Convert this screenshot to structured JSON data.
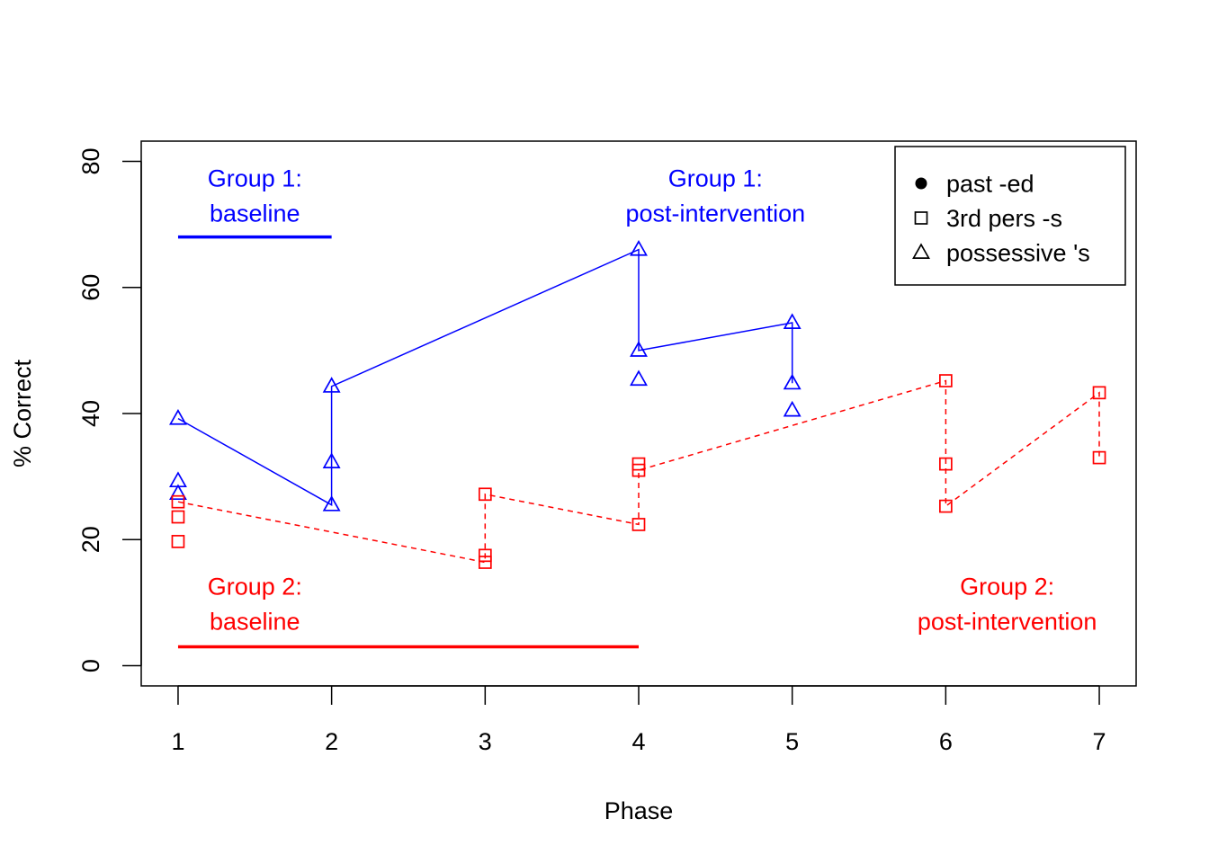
{
  "chart_data": {
    "type": "line",
    "xlabel": "Phase",
    "ylabel": "% Correct",
    "xlim": [
      0.76,
      7.24
    ],
    "ylim": [
      -3.2,
      83.2
    ],
    "x_ticks": [
      1,
      2,
      3,
      4,
      5,
      6,
      7
    ],
    "y_ticks": [
      0,
      20,
      40,
      60,
      80
    ],
    "grid": false,
    "legend": {
      "position": "top-right",
      "entries": [
        {
          "label": "past -ed",
          "symbol": "filled-circle"
        },
        {
          "label": "3rd pers -s",
          "symbol": "open-square"
        },
        {
          "label": "possessive 's",
          "symbol": "open-triangle"
        }
      ]
    },
    "series": [
      {
        "color": "#0000FF",
        "line_style": "solid",
        "marker": "open-triangle",
        "points": [
          {
            "x": 1,
            "y": 39.2
          },
          {
            "x": 1,
            "y": 29.3
          },
          {
            "x": 1,
            "y": 27.3
          },
          {
            "x": 2,
            "y": 44.3
          },
          {
            "x": 2,
            "y": 32.3
          },
          {
            "x": 2,
            "y": 25.5
          },
          {
            "x": 4,
            "y": 66.0
          },
          {
            "x": 4,
            "y": 50.0
          },
          {
            "x": 4,
            "y": 45.4
          },
          {
            "x": 5,
            "y": 54.4
          },
          {
            "x": 5,
            "y": 44.8
          },
          {
            "x": 5,
            "y": 40.5
          }
        ],
        "trend_line": [
          {
            "x": 1,
            "y": 39.2
          },
          {
            "x": 2,
            "y": 25.5
          },
          {
            "x": 2,
            "y": 44.3
          },
          {
            "x": 4,
            "y": 66.0
          },
          {
            "x": 4,
            "y": 50.0
          },
          {
            "x": 5,
            "y": 54.4
          },
          {
            "x": 5,
            "y": 44.8
          }
        ]
      },
      {
        "color": "#FF0000",
        "line_style": "dashed",
        "marker": "open-square",
        "points": [
          {
            "x": 1,
            "y": 26.0
          },
          {
            "x": 1,
            "y": 23.6
          },
          {
            "x": 1,
            "y": 19.7
          },
          {
            "x": 3,
            "y": 27.2
          },
          {
            "x": 3,
            "y": 17.5
          },
          {
            "x": 3,
            "y": 16.4
          },
          {
            "x": 4,
            "y": 32.0
          },
          {
            "x": 4,
            "y": 31.0
          },
          {
            "x": 4,
            "y": 22.4
          },
          {
            "x": 6,
            "y": 45.2
          },
          {
            "x": 6,
            "y": 32.0
          },
          {
            "x": 6,
            "y": 25.3
          },
          {
            "x": 7,
            "y": 43.3
          },
          {
            "x": 7,
            "y": 33.0
          }
        ],
        "trend_line": [
          {
            "x": 1,
            "y": 26.0
          },
          {
            "x": 3,
            "y": 16.4
          },
          {
            "x": 3,
            "y": 27.2
          },
          {
            "x": 4,
            "y": 22.4
          },
          {
            "x": 4,
            "y": 31.0
          },
          {
            "x": 6,
            "y": 45.2
          },
          {
            "x": 6,
            "y": 25.3
          },
          {
            "x": 7,
            "y": 43.3
          },
          {
            "x": 7,
            "y": 33.0
          }
        ]
      }
    ],
    "annotations": [
      {
        "lines": [
          "Group 1:",
          "baseline"
        ],
        "color": "#0000FF",
        "x": 1.5,
        "y": 74.5
      },
      {
        "lines": [
          "Group 1:",
          "post-intervention"
        ],
        "color": "#0000FF",
        "x": 4.5,
        "y": 74.5
      },
      {
        "lines": [
          "Group 2:",
          "baseline"
        ],
        "color": "#FF0000",
        "x": 1.5,
        "y": 9.8
      },
      {
        "lines": [
          "Group 2:",
          "post-intervention"
        ],
        "color": "#FF0000",
        "x": 6.4,
        "y": 9.8
      }
    ],
    "phase_bars": [
      {
        "color": "#0000FF",
        "x_start": 1,
        "x_end": 2,
        "y": 68
      },
      {
        "color": "#FF0000",
        "x_start": 1,
        "x_end": 4,
        "y": 3
      }
    ]
  }
}
